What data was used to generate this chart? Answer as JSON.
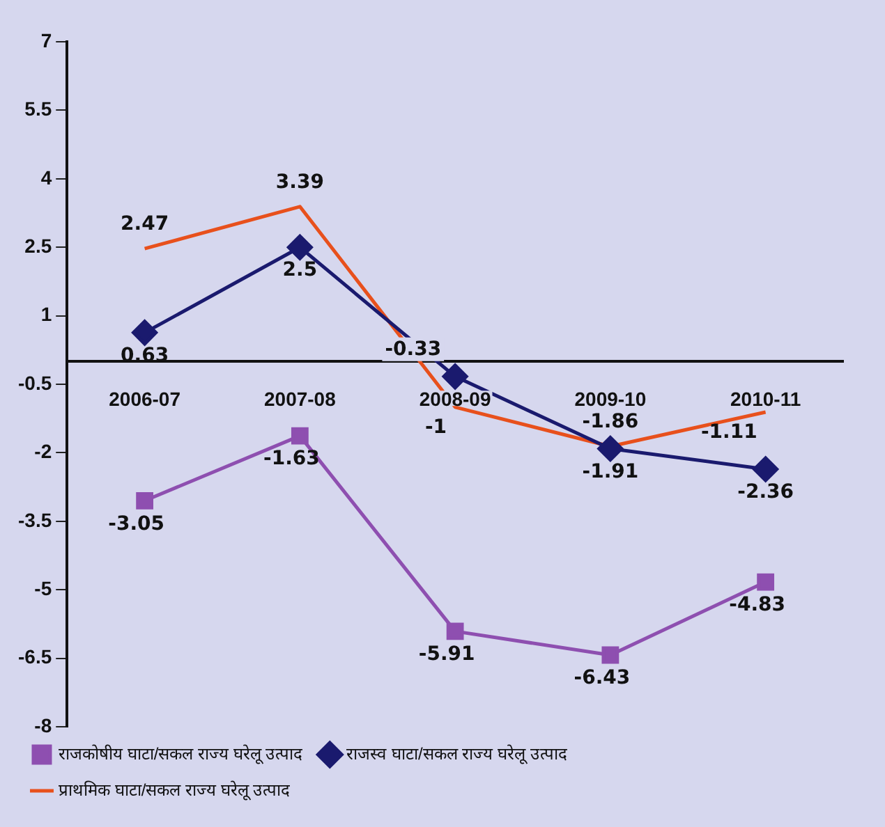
{
  "chart_data": {
    "type": "line",
    "categories": [
      "2006-07",
      "2007-08",
      "2008-09",
      "2009-10",
      "2010-11"
    ],
    "series": [
      {
        "name": "राजकोषीय घाटा/सकल राज्य घरेलू उत्पाद",
        "color": "#8e4fb0",
        "marker": "square",
        "values": [
          -3.05,
          -1.63,
          -5.91,
          -6.43,
          -4.83
        ]
      },
      {
        "name": "राजस्व घाटा/सकल राज्य घरेलू उत्पाद",
        "color": "#1a1a6e",
        "marker": "diamond",
        "values": [
          0.63,
          2.5,
          -0.33,
          -1.91,
          -2.36
        ]
      },
      {
        "name": "प्राथमिक घाटा/सकल राज्य घरेलू उत्पाद",
        "color": "#e8501c",
        "marker": "none",
        "values": [
          2.47,
          3.39,
          -1,
          -1.86,
          -1.11
        ]
      }
    ],
    "ylim": [
      -8,
      7
    ],
    "yticks": [
      -8,
      -6.5,
      -5,
      -3.5,
      -2,
      -0.5,
      1,
      2.5,
      4,
      5.5,
      7
    ],
    "grid": false,
    "legend": "bottom",
    "data_labels": true
  }
}
